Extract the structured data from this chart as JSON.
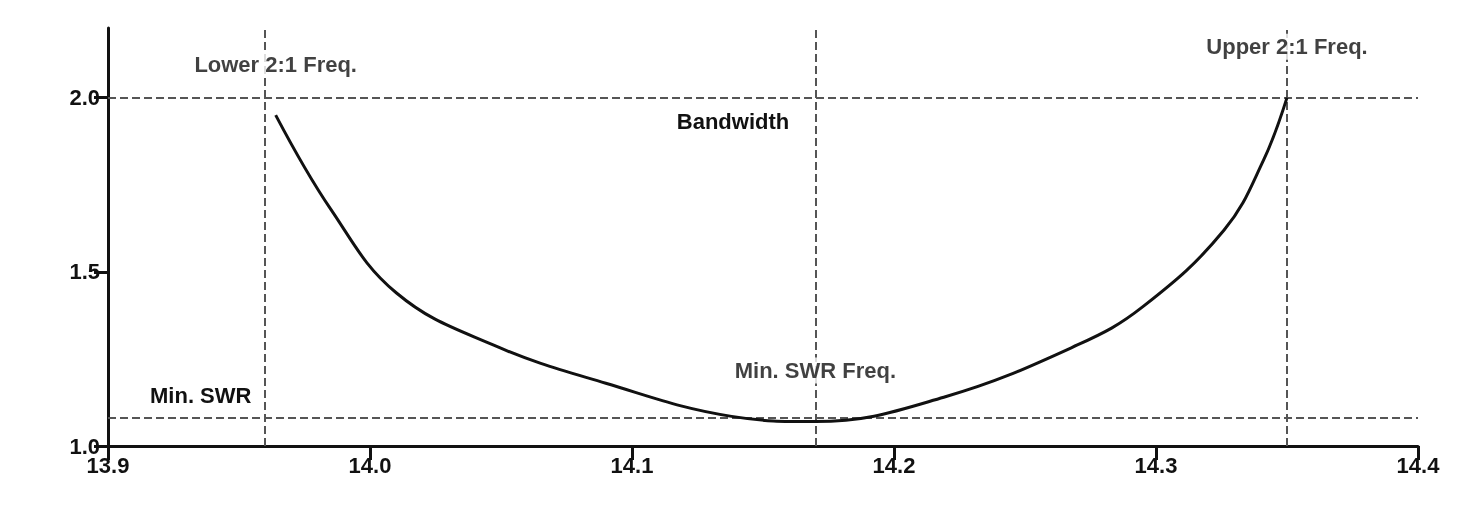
{
  "chart_data": {
    "type": "line",
    "color": "#111111",
    "line_style": "solid",
    "marker": "none",
    "grid": false,
    "x": [
      13.964,
      13.985,
      14.01,
      14.047,
      14.09,
      14.138,
      14.17,
      14.219,
      14.27,
      14.295,
      14.326,
      14.341,
      14.35
    ],
    "values": [
      1.95,
      1.68,
      1.44,
      1.29,
      1.18,
      1.085,
      1.07,
      1.14,
      1.29,
      1.4,
      1.62,
      1.82,
      2.0
    ],
    "xlim": [
      13.9,
      14.4
    ],
    "xticks": [
      13.9,
      {
        "value": 14.0,
        "label": "14.0"
      },
      14.1,
      14.2,
      14.3,
      14.4
    ],
    "ylim": [
      1.0,
      2.2
    ],
    "yticks": [
      {
        "value": 1.0,
        "label": "1.0"
      },
      1.5,
      {
        "value": 2.0,
        "label": "2.0"
      }
    ],
    "ref_lines": [
      {
        "axis": "y",
        "value": 2.0,
        "line_style": "dashed",
        "color": "#555555"
      },
      {
        "axis": "y",
        "value": 1.08,
        "line_style": "dashed",
        "color": "#555555",
        "label": "Min. SWR"
      },
      {
        "axis": "x",
        "value": 13.96,
        "line_style": "dashed",
        "color": "#555555"
      },
      {
        "axis": "x",
        "value": 14.35,
        "line_style": "dashed",
        "color": "#555555"
      },
      {
        "axis": "x",
        "value": 14.17,
        "line_style": "dashed",
        "color": "#555555"
      }
    ],
    "annotations": [
      {
        "text": "Lower 2:1 Freq.",
        "x": 13.964,
        "y": 1.95
      },
      {
        "text": "Upper 2:1 Freq.",
        "x": 14.35,
        "y": 2.0
      },
      "Bandwidth",
      {
        "text": "Min. SWR Freq.",
        "x": 14.17,
        "y": 1.07
      }
    ]
  }
}
